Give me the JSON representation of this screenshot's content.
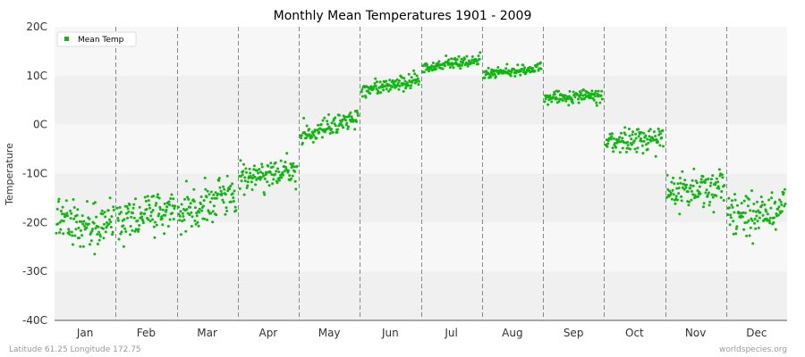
{
  "chart_data": {
    "type": "scatter",
    "title": "Monthly Mean Temperatures 1901 - 2009",
    "xlabel": "",
    "ylabel": "Temperature",
    "ylim": [
      -40,
      20
    ],
    "yticks": [
      20,
      10,
      0,
      -10,
      -20,
      -30,
      -40
    ],
    "ytick_labels": [
      "20C",
      "10C",
      "0C",
      "-10C",
      "-20C",
      "-30C",
      "-40C"
    ],
    "categories": [
      "Jan",
      "Feb",
      "Mar",
      "Apr",
      "May",
      "Jun",
      "Jul",
      "Aug",
      "Sep",
      "Oct",
      "Nov",
      "Dec"
    ],
    "series": [
      {
        "name": "Mean Temp",
        "color": "#11b611",
        "monthly_start": [
          -20.5,
          -19.5,
          -18.5,
          -11.5,
          -2.5,
          7.0,
          11.5,
          10.5,
          5.5,
          -3.5,
          -13.5,
          -19.0
        ],
        "monthly_end": [
          -19.5,
          -18.0,
          -14.0,
          -8.5,
          1.5,
          9.5,
          13.5,
          11.5,
          6.0,
          -2.5,
          -13.0,
          -17.0
        ],
        "monthly_spread": [
          3.5,
          3.0,
          3.0,
          2.0,
          1.5,
          1.0,
          0.8,
          0.7,
          0.8,
          1.5,
          2.5,
          3.0
        ],
        "points_per_month": 109
      }
    ],
    "legend": {
      "position": "top-left"
    },
    "grid": true,
    "background_bands": [
      "#f7f7f7",
      "#f0f0f0"
    ],
    "divider_color": "#888888"
  },
  "footer": {
    "left": "Latitude 61.25 Longitude 172.75",
    "right": "worldspecies.org"
  }
}
